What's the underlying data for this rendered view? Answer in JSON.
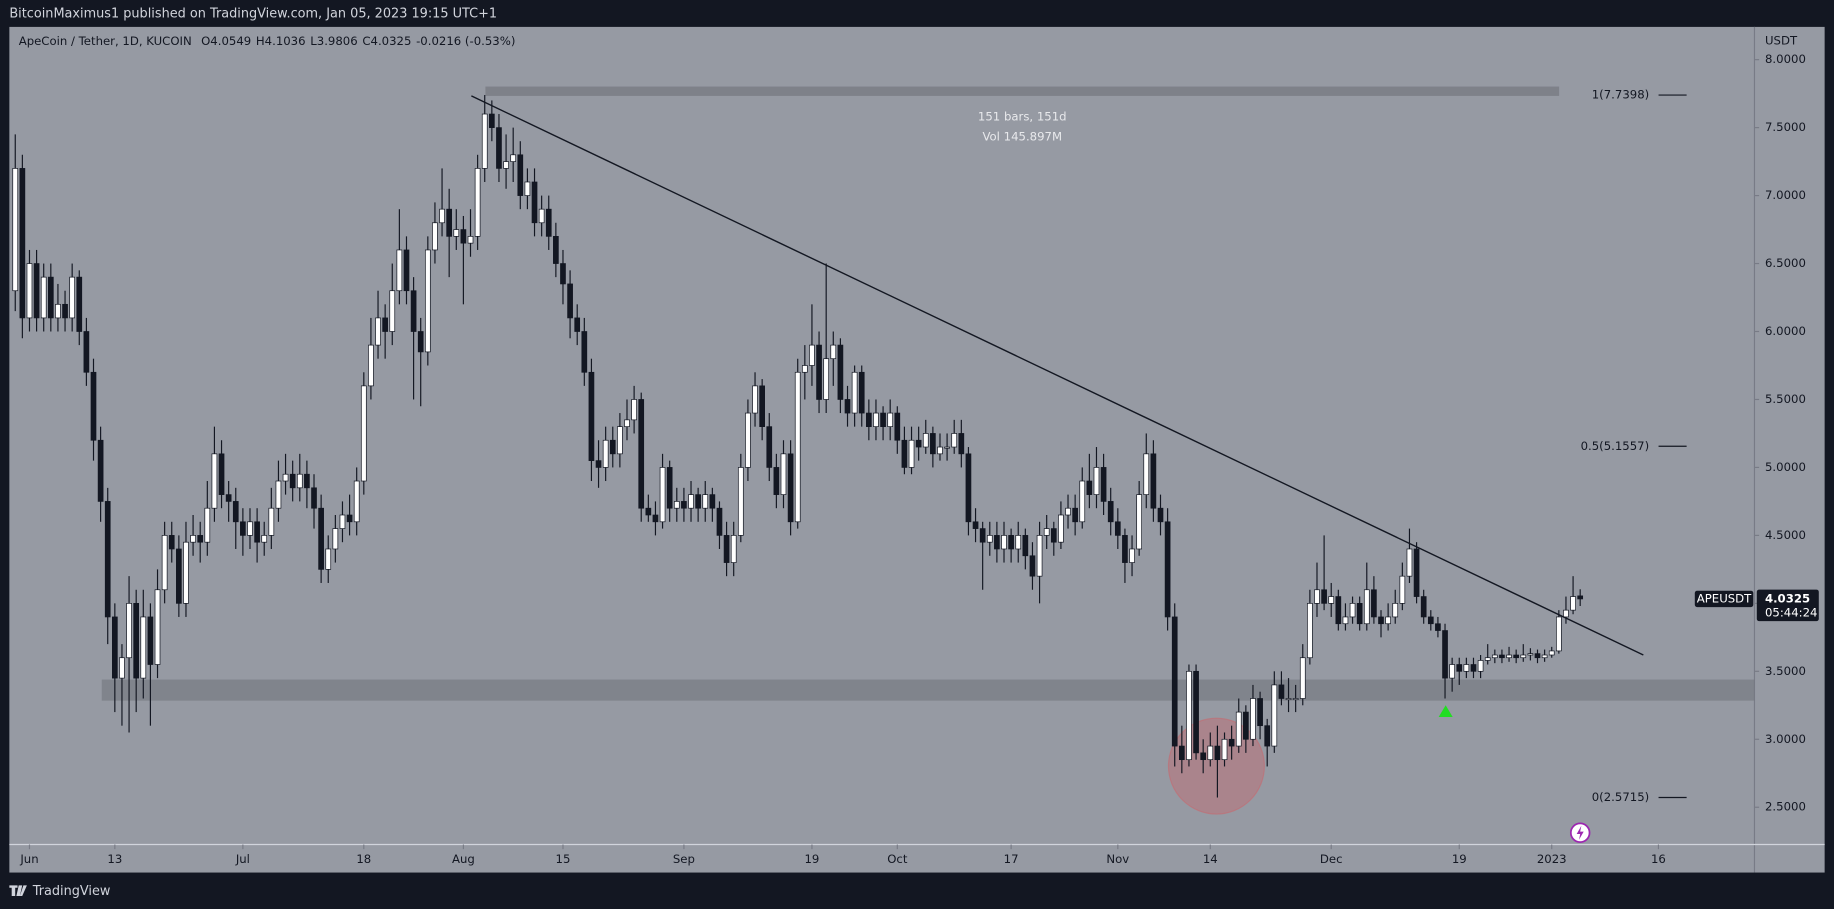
{
  "header": {
    "publisher": "BitcoinMaximus1 published on TradingView.com, Jan 05, 2023 19:15 UTC+1"
  },
  "footer": {
    "brand": "TradingView"
  },
  "chart_data": {
    "type": "candlestick",
    "symbol": "ApeCoin / Tether, 1D, KUCOIN",
    "quote": [
      "O4.0549",
      "H4.1036",
      "L3.9806",
      "C4.0325",
      "-0.0216 (-0.53%)"
    ],
    "y_unit": "USDT",
    "up_color": "#ffffff",
    "down_color": "#131722",
    "xlim": [
      -0.5,
      244.5
    ],
    "ylim": [
      2.226,
      8.241
    ],
    "xticks": [
      {
        "value": 2,
        "label": "Jun"
      },
      {
        "value": 14,
        "label": "13"
      },
      {
        "value": 32,
        "label": "Jul"
      },
      {
        "value": 49,
        "label": "18"
      },
      {
        "value": 63,
        "label": "Aug"
      },
      {
        "value": 77,
        "label": "15"
      },
      {
        "value": 94,
        "label": "Sep"
      },
      {
        "value": 112,
        "label": "19"
      },
      {
        "value": 124,
        "label": "Oct"
      },
      {
        "value": 140,
        "label": "17"
      },
      {
        "value": 155,
        "label": "Nov"
      },
      {
        "value": 168,
        "label": "14"
      },
      {
        "value": 185,
        "label": "Dec"
      },
      {
        "value": 203,
        "label": "19"
      },
      {
        "value": 216,
        "label": "2023"
      },
      {
        "value": 231,
        "label": "16"
      }
    ],
    "yticks": [
      {
        "value": 2.5,
        "label": "2.5000"
      },
      {
        "value": 3,
        "label": "3.0000"
      },
      {
        "value": 3.5,
        "label": "3.5000"
      },
      {
        "value": 4,
        "label": "4.0000"
      },
      {
        "value": 4.5,
        "label": "4.5000"
      },
      {
        "value": 5,
        "label": "5.0000"
      },
      {
        "value": 5.5,
        "label": "5.5000"
      },
      {
        "value": 6,
        "label": "6.0000"
      },
      {
        "value": 6.5,
        "label": "6.5000"
      },
      {
        "value": 7,
        "label": "7.0000"
      },
      {
        "value": 7.5,
        "label": "7.5000"
      },
      {
        "value": 8,
        "label": "8.0000"
      }
    ],
    "fib_levels": [
      {
        "label": "1(7.7398)",
        "price": 7.7398
      },
      {
        "label": "0.5(5.1557)",
        "price": 5.1557
      },
      {
        "label": "0(2.5715)",
        "price": 2.5715
      }
    ],
    "range_note": [
      "151 bars, 151d",
      "Vol 145.897M"
    ],
    "last_price": {
      "ticker": "APEUSDT",
      "price": 4.0325,
      "countdown": "05:44:24"
    },
    "candles": [
      [
        6.3,
        7.45,
        6.15,
        7.2
      ],
      [
        7.2,
        7.3,
        5.95,
        6.1
      ],
      [
        6.1,
        6.6,
        6.0,
        6.5
      ],
      [
        6.5,
        6.6,
        6.0,
        6.1
      ],
      [
        6.1,
        6.5,
        6.0,
        6.4
      ],
      [
        6.4,
        6.5,
        6.0,
        6.1
      ],
      [
        6.1,
        6.35,
        6.0,
        6.2
      ],
      [
        6.2,
        6.3,
        6.0,
        6.1
      ],
      [
        6.1,
        6.5,
        6.0,
        6.4
      ],
      [
        6.4,
        6.45,
        5.9,
        6.0
      ],
      [
        6.0,
        6.1,
        5.6,
        5.7
      ],
      [
        5.7,
        5.8,
        5.05,
        5.2
      ],
      [
        5.2,
        5.3,
        4.6,
        4.75
      ],
      [
        4.75,
        4.85,
        3.7,
        3.9
      ],
      [
        3.9,
        4.0,
        3.2,
        3.45
      ],
      [
        3.45,
        3.7,
        3.1,
        3.6
      ],
      [
        3.6,
        4.2,
        3.05,
        4.0
      ],
      [
        4.0,
        4.1,
        3.2,
        3.45
      ],
      [
        3.45,
        4.1,
        3.3,
        3.9
      ],
      [
        3.9,
        4.0,
        3.1,
        3.55
      ],
      [
        3.55,
        4.25,
        3.45,
        4.1
      ],
      [
        4.1,
        4.6,
        4.0,
        4.5
      ],
      [
        4.5,
        4.6,
        4.3,
        4.4
      ],
      [
        4.4,
        4.5,
        3.9,
        4.0
      ],
      [
        4.0,
        4.6,
        3.9,
        4.45
      ],
      [
        4.45,
        4.65,
        4.35,
        4.5
      ],
      [
        4.5,
        4.6,
        4.3,
        4.45
      ],
      [
        4.45,
        4.9,
        4.35,
        4.7
      ],
      [
        4.7,
        5.3,
        4.6,
        5.1
      ],
      [
        5.1,
        5.2,
        4.7,
        4.8
      ],
      [
        4.8,
        4.9,
        4.6,
        4.75
      ],
      [
        4.75,
        4.85,
        4.4,
        4.6
      ],
      [
        4.6,
        4.7,
        4.35,
        4.5
      ],
      [
        4.5,
        4.7,
        4.4,
        4.6
      ],
      [
        4.6,
        4.7,
        4.3,
        4.45
      ],
      [
        4.45,
        4.6,
        4.35,
        4.5
      ],
      [
        4.5,
        4.85,
        4.4,
        4.7
      ],
      [
        4.7,
        5.05,
        4.6,
        4.9
      ],
      [
        4.9,
        5.1,
        4.8,
        4.95
      ],
      [
        4.95,
        5.05,
        4.75,
        4.85
      ],
      [
        4.85,
        5.1,
        4.75,
        4.95
      ],
      [
        4.95,
        5.05,
        4.7,
        4.85
      ],
      [
        4.85,
        4.95,
        4.55,
        4.7
      ],
      [
        4.7,
        4.8,
        4.15,
        4.25
      ],
      [
        4.25,
        4.5,
        4.15,
        4.4
      ],
      [
        4.4,
        4.65,
        4.3,
        4.55
      ],
      [
        4.55,
        4.75,
        4.45,
        4.65
      ],
      [
        4.65,
        4.8,
        4.5,
        4.6
      ],
      [
        4.6,
        5.0,
        4.5,
        4.9
      ],
      [
        4.9,
        5.7,
        4.8,
        5.6
      ],
      [
        5.6,
        6.1,
        5.5,
        5.9
      ],
      [
        5.9,
        6.3,
        5.8,
        6.1
      ],
      [
        6.1,
        6.2,
        5.8,
        6.0
      ],
      [
        6.0,
        6.5,
        5.9,
        6.3
      ],
      [
        6.3,
        6.9,
        6.2,
        6.6
      ],
      [
        6.6,
        6.7,
        6.2,
        6.3
      ],
      [
        6.3,
        6.4,
        5.5,
        6.0
      ],
      [
        6.0,
        6.1,
        5.45,
        5.85
      ],
      [
        5.85,
        6.7,
        5.75,
        6.6
      ],
      [
        6.6,
        6.95,
        6.5,
        6.8
      ],
      [
        6.8,
        7.2,
        6.7,
        6.9
      ],
      [
        6.9,
        7.05,
        6.4,
        6.7
      ],
      [
        6.7,
        6.9,
        6.6,
        6.75
      ],
      [
        6.75,
        6.85,
        6.2,
        6.65
      ],
      [
        6.65,
        6.9,
        6.55,
        6.7
      ],
      [
        6.7,
        7.3,
        6.6,
        7.2
      ],
      [
        7.2,
        7.7398,
        7.1,
        7.6
      ],
      [
        7.6,
        7.7,
        7.4,
        7.5
      ],
      [
        7.5,
        7.6,
        7.1,
        7.2
      ],
      [
        7.2,
        7.45,
        7.05,
        7.25
      ],
      [
        7.25,
        7.5,
        7.1,
        7.3
      ],
      [
        7.3,
        7.4,
        6.9,
        7.0
      ],
      [
        7.0,
        7.2,
        6.9,
        7.1
      ],
      [
        7.1,
        7.2,
        6.7,
        6.8
      ],
      [
        6.8,
        7.0,
        6.7,
        6.9
      ],
      [
        6.9,
        7.0,
        6.6,
        6.7
      ],
      [
        6.7,
        6.8,
        6.4,
        6.5
      ],
      [
        6.5,
        6.6,
        6.2,
        6.35
      ],
      [
        6.35,
        6.45,
        5.95,
        6.1
      ],
      [
        6.1,
        6.2,
        5.9,
        6.0
      ],
      [
        6.0,
        6.1,
        5.6,
        5.7
      ],
      [
        5.7,
        5.8,
        4.9,
        5.05
      ],
      [
        5.05,
        5.2,
        4.85,
        5.0
      ],
      [
        5.0,
        5.3,
        4.9,
        5.2
      ],
      [
        5.2,
        5.3,
        5.0,
        5.1
      ],
      [
        5.1,
        5.4,
        5.0,
        5.3
      ],
      [
        5.3,
        5.5,
        5.2,
        5.35
      ],
      [
        5.35,
        5.6,
        5.25,
        5.5
      ],
      [
        5.5,
        5.55,
        4.6,
        4.7
      ],
      [
        4.7,
        4.8,
        4.6,
        4.65
      ],
      [
        4.65,
        4.75,
        4.5,
        4.6
      ],
      [
        4.6,
        5.1,
        4.55,
        5.0
      ],
      [
        5.0,
        5.05,
        4.6,
        4.7
      ],
      [
        4.7,
        4.85,
        4.6,
        4.75
      ],
      [
        4.75,
        4.85,
        4.6,
        4.7
      ],
      [
        4.7,
        4.9,
        4.6,
        4.8
      ],
      [
        4.8,
        4.85,
        4.6,
        4.7
      ],
      [
        4.7,
        4.9,
        4.6,
        4.8
      ],
      [
        4.8,
        4.85,
        4.6,
        4.7
      ],
      [
        4.7,
        4.75,
        4.4,
        4.5
      ],
      [
        4.5,
        4.6,
        4.2,
        4.3
      ],
      [
        4.3,
        4.6,
        4.2,
        4.5
      ],
      [
        4.5,
        5.1,
        4.45,
        5.0
      ],
      [
        5.0,
        5.5,
        4.9,
        5.4
      ],
      [
        5.4,
        5.7,
        5.3,
        5.6
      ],
      [
        5.6,
        5.65,
        5.2,
        5.3
      ],
      [
        5.3,
        5.4,
        4.9,
        5.0
      ],
      [
        5.0,
        5.1,
        4.7,
        4.8
      ],
      [
        4.8,
        5.2,
        4.7,
        5.1
      ],
      [
        5.1,
        5.2,
        4.5,
        4.6
      ],
      [
        4.6,
        5.8,
        4.55,
        5.7
      ],
      [
        5.7,
        5.9,
        5.5,
        5.75
      ],
      [
        5.75,
        6.2,
        5.6,
        5.9
      ],
      [
        5.9,
        6.0,
        5.4,
        5.5
      ],
      [
        5.5,
        6.5,
        5.4,
        5.8
      ],
      [
        5.8,
        6.0,
        5.6,
        5.9
      ],
      [
        5.9,
        5.95,
        5.4,
        5.5
      ],
      [
        5.5,
        5.6,
        5.3,
        5.4
      ],
      [
        5.4,
        5.75,
        5.3,
        5.7
      ],
      [
        5.7,
        5.75,
        5.3,
        5.4
      ],
      [
        5.4,
        5.5,
        5.2,
        5.3
      ],
      [
        5.3,
        5.5,
        5.2,
        5.4
      ],
      [
        5.4,
        5.45,
        5.2,
        5.3
      ],
      [
        5.3,
        5.5,
        5.2,
        5.4
      ],
      [
        5.4,
        5.45,
        5.1,
        5.2
      ],
      [
        5.2,
        5.3,
        4.95,
        5.0
      ],
      [
        5.0,
        5.3,
        4.95,
        5.2
      ],
      [
        5.2,
        5.3,
        5.05,
        5.15
      ],
      [
        5.15,
        5.35,
        5.1,
        5.25
      ],
      [
        5.25,
        5.3,
        5.0,
        5.1
      ],
      [
        5.1,
        5.25,
        5.05,
        5.15
      ],
      [
        5.15,
        5.25,
        5.05,
        5.15
      ],
      [
        5.15,
        5.35,
        5.1,
        5.25
      ],
      [
        5.25,
        5.35,
        5.0,
        5.1
      ],
      [
        5.1,
        5.15,
        4.5,
        4.6
      ],
      [
        4.6,
        4.7,
        4.45,
        4.55
      ],
      [
        4.55,
        4.6,
        4.1,
        4.45
      ],
      [
        4.45,
        4.6,
        4.35,
        4.5
      ],
      [
        4.5,
        4.6,
        4.3,
        4.4
      ],
      [
        4.4,
        4.6,
        4.3,
        4.5
      ],
      [
        4.5,
        4.55,
        4.3,
        4.4
      ],
      [
        4.4,
        4.6,
        4.3,
        4.5
      ],
      [
        4.5,
        4.55,
        4.25,
        4.35
      ],
      [
        4.35,
        4.45,
        4.1,
        4.2
      ],
      [
        4.2,
        4.6,
        4.0,
        4.5
      ],
      [
        4.5,
        4.65,
        4.4,
        4.55
      ],
      [
        4.55,
        4.6,
        4.35,
        4.45
      ],
      [
        4.45,
        4.75,
        4.4,
        4.65
      ],
      [
        4.65,
        4.8,
        4.55,
        4.7
      ],
      [
        4.7,
        4.8,
        4.5,
        4.6
      ],
      [
        4.6,
        5.0,
        4.55,
        4.9
      ],
      [
        4.9,
        5.1,
        4.7,
        4.8
      ],
      [
        4.8,
        5.15,
        4.7,
        5.0
      ],
      [
        5.0,
        5.1,
        4.65,
        4.75
      ],
      [
        4.75,
        4.85,
        4.5,
        4.6
      ],
      [
        4.6,
        4.7,
        4.4,
        4.5
      ],
      [
        4.5,
        4.55,
        4.15,
        4.3
      ],
      [
        4.3,
        4.5,
        4.2,
        4.4
      ],
      [
        4.4,
        4.9,
        4.35,
        4.8
      ],
      [
        4.8,
        5.25,
        4.7,
        5.1
      ],
      [
        5.1,
        5.2,
        4.6,
        4.7
      ],
      [
        4.7,
        4.8,
        4.5,
        4.6
      ],
      [
        4.6,
        4.7,
        3.8,
        3.9
      ],
      [
        3.9,
        4.0,
        2.8,
        2.95
      ],
      [
        2.95,
        3.1,
        2.75,
        2.85
      ],
      [
        2.85,
        3.55,
        2.8,
        3.5
      ],
      [
        3.5,
        3.55,
        2.85,
        2.9
      ],
      [
        2.9,
        3.0,
        2.75,
        2.85
      ],
      [
        2.85,
        3.05,
        2.8,
        2.95
      ],
      [
        2.95,
        3.1,
        2.5715,
        2.85
      ],
      [
        2.85,
        3.05,
        2.8,
        3.0
      ],
      [
        3.0,
        3.1,
        2.85,
        2.95
      ],
      [
        2.95,
        3.3,
        2.9,
        3.2
      ],
      [
        3.2,
        3.25,
        2.9,
        3.0
      ],
      [
        3.0,
        3.4,
        2.95,
        3.3
      ],
      [
        3.3,
        3.35,
        3.0,
        3.1
      ],
      [
        3.1,
        3.15,
        2.8,
        2.95
      ],
      [
        2.95,
        3.5,
        2.9,
        3.4
      ],
      [
        3.4,
        3.5,
        3.25,
        3.3
      ],
      [
        3.3,
        3.45,
        3.2,
        3.3
      ],
      [
        3.3,
        3.4,
        3.2,
        3.3
      ],
      [
        3.3,
        3.7,
        3.25,
        3.6
      ],
      [
        3.6,
        4.1,
        3.55,
        4.0
      ],
      [
        4.0,
        4.3,
        3.9,
        4.1
      ],
      [
        4.1,
        4.5,
        3.95,
        4.0
      ],
      [
        4.0,
        4.15,
        3.9,
        4.05
      ],
      [
        4.05,
        4.1,
        3.8,
        3.85
      ],
      [
        3.85,
        4.0,
        3.8,
        3.9
      ],
      [
        3.9,
        4.05,
        3.85,
        4.0
      ],
      [
        4.0,
        4.05,
        3.8,
        3.85
      ],
      [
        3.85,
        4.3,
        3.8,
        4.1
      ],
      [
        4.1,
        4.2,
        3.85,
        3.9
      ],
      [
        3.9,
        3.95,
        3.75,
        3.85
      ],
      [
        3.85,
        4.0,
        3.8,
        3.9
      ],
      [
        3.9,
        4.1,
        3.85,
        4.0
      ],
      [
        4.0,
        4.3,
        3.95,
        4.2
      ],
      [
        4.2,
        4.55,
        4.15,
        4.4
      ],
      [
        4.4,
        4.45,
        4.0,
        4.05
      ],
      [
        4.05,
        4.1,
        3.85,
        3.9
      ],
      [
        3.9,
        3.95,
        3.8,
        3.85
      ],
      [
        3.85,
        3.9,
        3.75,
        3.8
      ],
      [
        3.8,
        3.85,
        3.3,
        3.45
      ],
      [
        3.45,
        3.6,
        3.35,
        3.55
      ],
      [
        3.55,
        3.6,
        3.4,
        3.5
      ],
      [
        3.5,
        3.6,
        3.45,
        3.55
      ],
      [
        3.55,
        3.6,
        3.45,
        3.5
      ],
      [
        3.5,
        3.62,
        3.45,
        3.58
      ],
      [
        3.58,
        3.7,
        3.55,
        3.6
      ],
      [
        3.6,
        3.66,
        3.56,
        3.62
      ],
      [
        3.62,
        3.66,
        3.56,
        3.6
      ],
      [
        3.6,
        3.68,
        3.57,
        3.62
      ],
      [
        3.62,
        3.66,
        3.56,
        3.6
      ],
      [
        3.6,
        3.7,
        3.57,
        3.62
      ],
      [
        3.62,
        3.67,
        3.58,
        3.63
      ],
      [
        3.63,
        3.66,
        3.56,
        3.6
      ],
      [
        3.6,
        3.66,
        3.57,
        3.62
      ],
      [
        3.62,
        3.68,
        3.6,
        3.65
      ],
      [
        3.65,
        3.95,
        3.63,
        3.9
      ],
      [
        3.9,
        4.05,
        3.85,
        3.95
      ],
      [
        3.95,
        4.2,
        3.92,
        4.05
      ],
      [
        4.0549,
        4.1036,
        3.9806,
        4.0325
      ]
    ]
  }
}
